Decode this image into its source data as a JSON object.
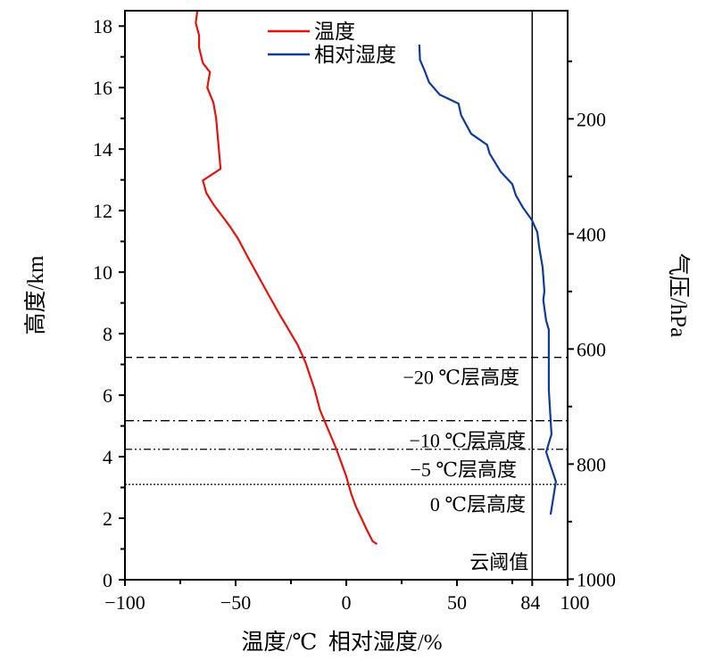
{
  "chart_data": {
    "type": "line",
    "xlabel": "温度/℃  相对湿度/%",
    "ylabel": "高度/km",
    "y2label": "气压/hPa",
    "xlim": [
      -100,
      100
    ],
    "ylim": [
      0,
      18.5
    ],
    "y2lim": [
      1001,
      12
    ],
    "xticks": [
      -100,
      -50,
      0,
      50,
      84,
      100
    ],
    "xminor": [
      -75,
      -25,
      25,
      75
    ],
    "yticks": [
      0,
      2,
      4,
      6,
      8,
      10,
      12,
      14,
      16,
      18
    ],
    "yminor": [
      1,
      3,
      5,
      7,
      9,
      11,
      13,
      15,
      17
    ],
    "y2ticks": [
      200,
      400,
      600,
      800,
      1000
    ],
    "y2minor": [
      100,
      300,
      500,
      700,
      900
    ],
    "legend": {
      "placement": "top-center"
    },
    "series": [
      {
        "name": "温度",
        "color": "#e8120c",
        "points": [
          [
            -67.3,
            18.5
          ],
          [
            -68,
            18.1
          ],
          [
            -66.5,
            17.7
          ],
          [
            -66.5,
            17.3
          ],
          [
            -64.8,
            16.8
          ],
          [
            -61.6,
            16.5
          ],
          [
            -62.8,
            16.0
          ],
          [
            -60,
            15.5
          ],
          [
            -58.8,
            15.0
          ],
          [
            -56.8,
            13.36
          ],
          [
            -64.8,
            12.98
          ],
          [
            -63.2,
            12.57
          ],
          [
            -60,
            12.2
          ],
          [
            -52.7,
            11.5
          ],
          [
            -49,
            11.1
          ],
          [
            -44.2,
            10.45
          ],
          [
            -35.4,
            9.3
          ],
          [
            -30.1,
            8.62
          ],
          [
            -22,
            7.64
          ],
          [
            -18.4,
            7.06
          ],
          [
            -14.3,
            6.18
          ],
          [
            -11.9,
            5.52
          ],
          [
            -4.6,
            4.27
          ],
          [
            -0.2,
            3.4
          ],
          [
            2.2,
            2.8
          ],
          [
            4.2,
            2.4
          ],
          [
            9.1,
            1.65
          ],
          [
            11.9,
            1.25
          ],
          [
            13.9,
            1.16
          ]
        ]
      },
      {
        "name": "相对湿度",
        "color": "#0d3a9c",
        "points": [
          [
            33,
            17.4
          ],
          [
            33.3,
            16.9
          ],
          [
            35.4,
            16.55
          ],
          [
            37.4,
            16.17
          ],
          [
            42.2,
            15.77
          ],
          [
            50.7,
            15.48
          ],
          [
            51.9,
            15.1
          ],
          [
            56.4,
            14.5
          ],
          [
            63.6,
            14.14
          ],
          [
            64.8,
            13.85
          ],
          [
            69.7,
            13.27
          ],
          [
            75,
            12.86
          ],
          [
            76.6,
            12.5
          ],
          [
            79.8,
            12.1
          ],
          [
            83.8,
            11.7
          ],
          [
            86.3,
            11.3
          ],
          [
            87.1,
            10.83
          ],
          [
            88.7,
            10.16
          ],
          [
            89.5,
            9.38
          ],
          [
            89,
            9.09
          ],
          [
            90.3,
            8.42
          ],
          [
            91.5,
            8.13
          ],
          [
            91.5,
            6.18
          ],
          [
            92.7,
            4.73
          ],
          [
            90.3,
            4.15
          ],
          [
            94.7,
            3.19
          ],
          [
            92.3,
            2.12
          ]
        ]
      }
    ],
    "reference_lines": [
      {
        "label": "−20 ℃层高度",
        "height": 7.23,
        "style": "dashed"
      },
      {
        "label": "−10 ℃层高度",
        "height": 5.17,
        "style": "dashdot"
      },
      {
        "label": "−5 ℃层高度",
        "height": 4.24,
        "style": "dashdotdot"
      },
      {
        "label": "0 ℃层高度",
        "height": 3.1,
        "style": "dotted"
      }
    ],
    "threshold": {
      "label": "云阈值",
      "x": 84
    }
  }
}
